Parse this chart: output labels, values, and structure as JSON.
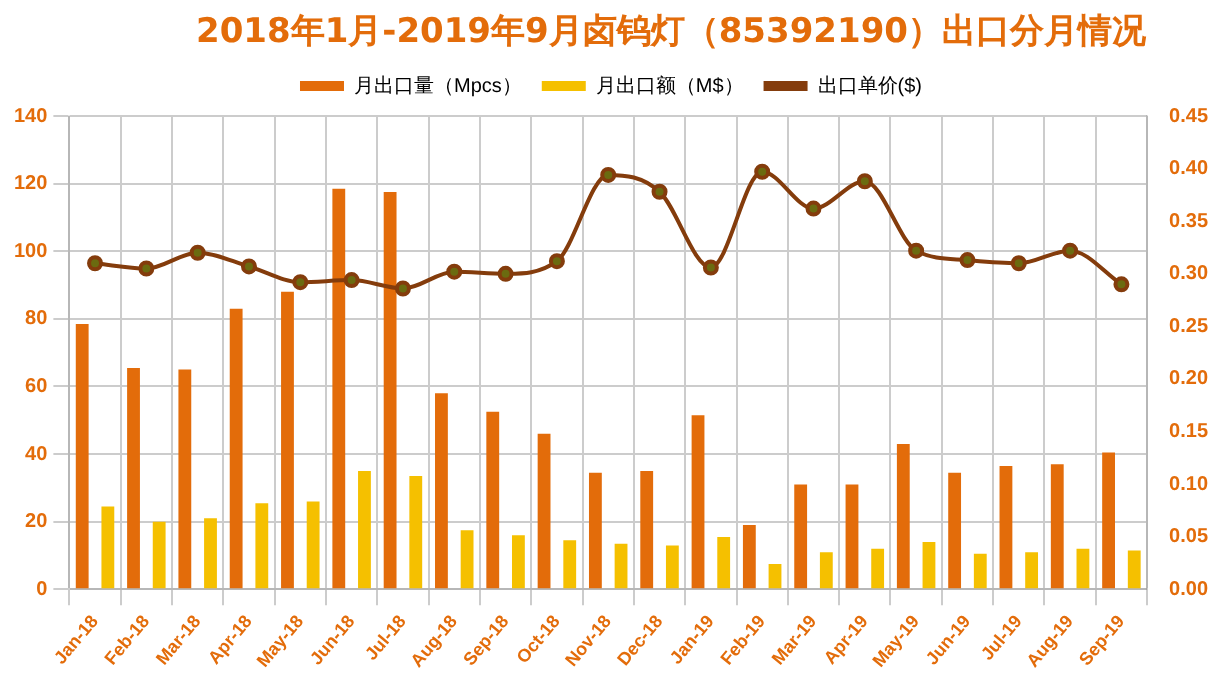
{
  "chart_data": {
    "type": "bar",
    "title": "2018年1月-2019年9月卤钨灯（85392190）出口分月情况",
    "categories": [
      "Jan-18",
      "Feb-18",
      "Mar-18",
      "Apr-18",
      "May-18",
      "Jun-18",
      "Jul-18",
      "Aug-18",
      "Sep-18",
      "Oct-18",
      "Nov-18",
      "Dec-18",
      "Jan-19",
      "Feb-19",
      "Mar-19",
      "Apr-19",
      "May-19",
      "Jun-19",
      "Jul-19",
      "Aug-19",
      "Sep-19"
    ],
    "series": [
      {
        "name": "月出口量（Mpcs）",
        "color": "#e36c0a",
        "values": [
          78.5,
          65.5,
          65,
          83,
          88,
          118.5,
          117.5,
          58,
          52.5,
          46,
          34.5,
          35,
          51.5,
          19,
          31,
          31,
          43,
          34.5,
          36.5,
          37,
          40.5
        ]
      },
      {
        "name": "月出口额（M$）",
        "color": "#f5c000",
        "values": [
          24.5,
          20,
          21,
          25.5,
          26,
          35,
          33.5,
          17.5,
          16,
          14.5,
          13.5,
          13,
          15.5,
          7.5,
          11,
          12,
          14,
          10.5,
          11,
          12,
          11.5
        ]
      },
      {
        "name": "出口单价($)",
        "type": "line",
        "axis": "y2",
        "color": "#843c0c",
        "marker": "circle",
        "values": [
          0.31,
          0.305,
          0.32,
          0.307,
          0.292,
          0.294,
          0.286,
          0.302,
          0.3,
          0.312,
          0.394,
          0.378,
          0.306,
          0.397,
          0.362,
          0.388,
          0.322,
          0.313,
          0.31,
          0.322,
          0.29
        ]
      }
    ],
    "ylim": [
      0,
      140
    ],
    "yticks": [
      0,
      20,
      40,
      60,
      80,
      100,
      120,
      140
    ],
    "y2lim": [
      0,
      0.45
    ],
    "y2ticks": [
      {
        "value": 0,
        "label": "0.00"
      },
      {
        "value": 0.05,
        "label": "0.05"
      },
      {
        "value": 0.1,
        "label": "0.10"
      },
      {
        "value": 0.15,
        "label": "0.15"
      },
      {
        "value": 0.2,
        "label": "0.20"
      },
      {
        "value": 0.25,
        "label": "0.25"
      },
      {
        "value": 0.3,
        "label": "0.30"
      },
      {
        "value": 0.35,
        "label": "0.35"
      },
      {
        "value": 0.4,
        "label": "0.40"
      },
      {
        "value": 0.45,
        "label": "0.45"
      }
    ],
    "grid": true,
    "legend": "top"
  }
}
